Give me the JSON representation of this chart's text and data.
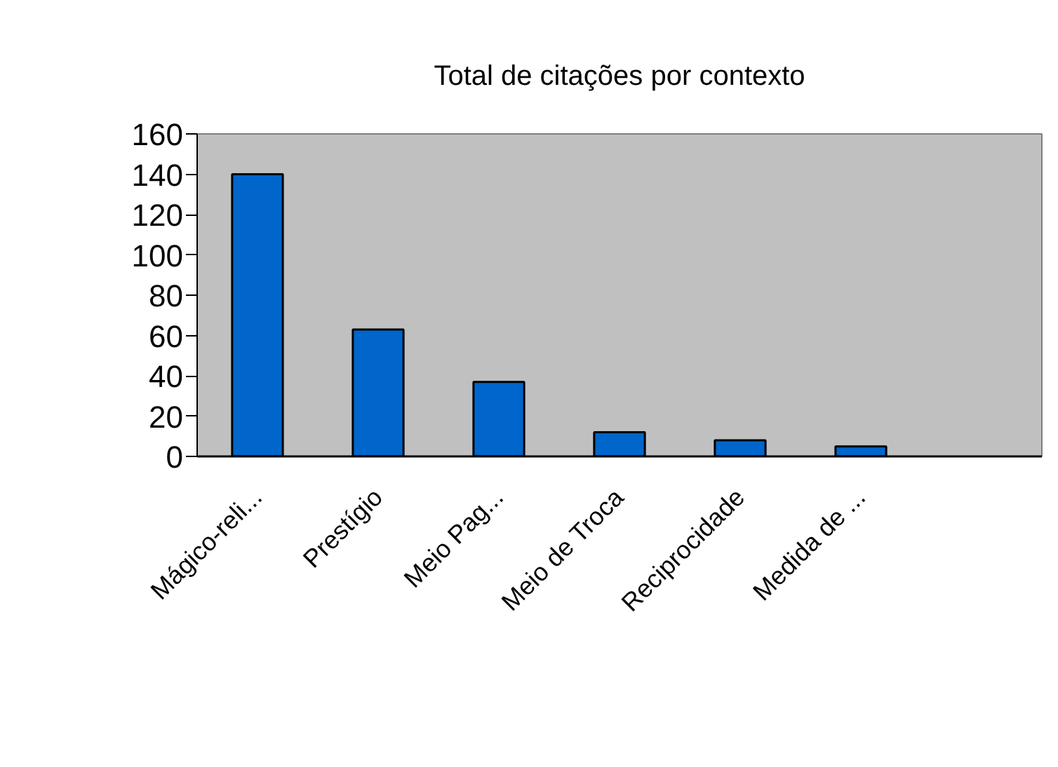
{
  "chart_data": {
    "type": "bar",
    "title": "Total de citações por contexto",
    "categories": [
      "Mágico-reli...",
      "Prestígio",
      "Meio Pag...",
      "Meio de Troca",
      "Reciprocidade",
      "Medida de ...",
      null
    ],
    "values": [
      140,
      63,
      37,
      12,
      8,
      5,
      null
    ],
    "color": "#0066cc",
    "ylim": [
      0,
      160
    ],
    "yticks": [
      0,
      20,
      40,
      60,
      80,
      100,
      120,
      140,
      160
    ],
    "grid": false
  }
}
